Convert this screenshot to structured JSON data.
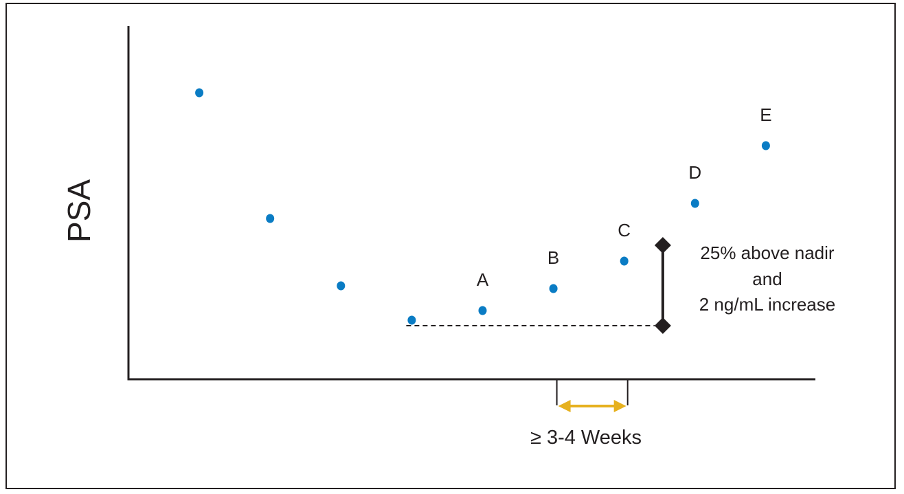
{
  "chart_data": {
    "type": "scatter",
    "title": "",
    "xlabel": "",
    "ylabel": "PSA",
    "x": [
      1,
      2,
      3,
      4,
      5,
      6,
      7,
      8,
      9
    ],
    "y": [
      4.17,
      2.34,
      1.36,
      0.86,
      1.0,
      1.32,
      1.72,
      2.56,
      3.4
    ],
    "point_labels": [
      "",
      "",
      "",
      "",
      "A",
      "B",
      "C",
      "D",
      "E"
    ],
    "nadir": 0.86,
    "xlim": [
      0,
      10
    ],
    "ylim": [
      0,
      5.08
    ],
    "axis_ticks": false,
    "grid": false,
    "colors": {
      "points": "#0a7cc4",
      "axis": "#231f20",
      "interval_arrow": "#e6b11e",
      "threshold_bar": "#231f20"
    },
    "annotations": {
      "threshold_lines": [
        "25% above nadir",
        "and",
        "2 ng/mL increase"
      ],
      "interval_label": "≥ 3-4 Weeks",
      "interval_between": [
        "B",
        "C"
      ]
    }
  }
}
